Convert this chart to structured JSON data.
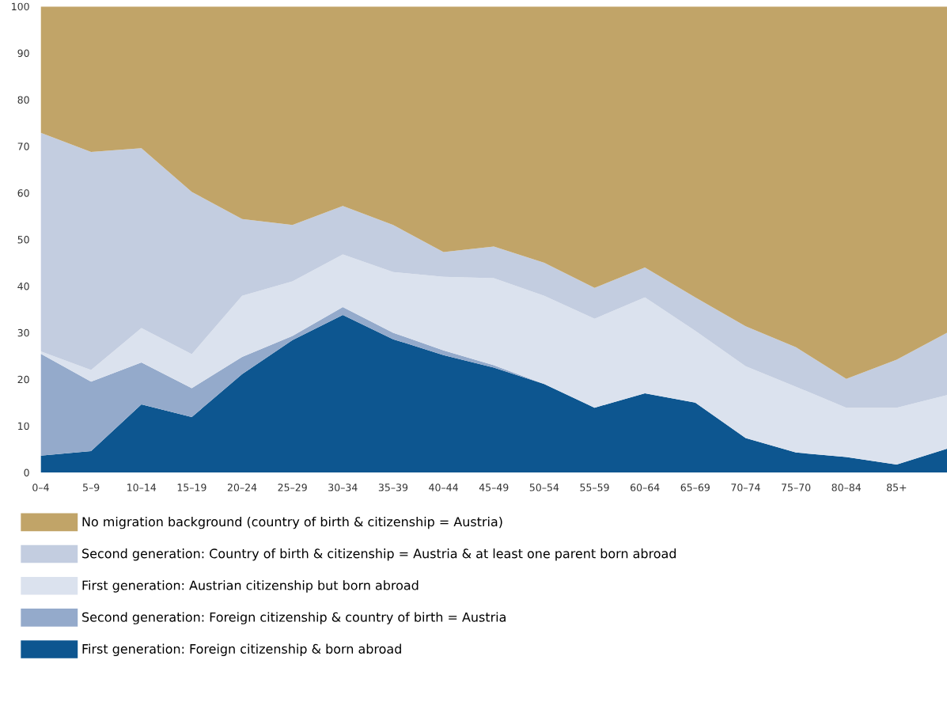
{
  "chart_data": {
    "type": "area",
    "stacked": true,
    "categories": [
      "0–4",
      "5–9",
      "10–14",
      "15–19",
      "20–24",
      "25–29",
      "30–34",
      "35–39",
      "40–44",
      "45–49",
      "50–54",
      "55–59",
      "60–64",
      "65–69",
      "70–74",
      "75–70",
      "80–84",
      "85+",
      null
    ],
    "ylim": [
      0,
      100
    ],
    "yticks": [
      0,
      10,
      20,
      30,
      40,
      50,
      60,
      70,
      80,
      90,
      100
    ],
    "grid": false,
    "legend": "bottom",
    "series": [
      {
        "name": "First generation: Foreign citizenship & born abroad",
        "color": "#0d5690",
        "values": [
          3.6,
          4.6,
          14.6,
          11.9,
          21.1,
          28.4,
          33.8,
          28.6,
          25.2,
          22.5,
          19,
          13.9,
          17,
          15,
          7.4,
          4.3,
          3.3,
          1.7,
          5.1
        ]
      },
      {
        "name": "Second generation: Foreign citizenship & country of birth = Austria",
        "color": "#94aacb",
        "values": [
          21.9,
          14.9,
          9,
          6.2,
          3.7,
          0.9,
          1.7,
          1.4,
          1,
          0.5,
          0,
          0,
          0,
          0,
          0,
          0,
          0,
          0,
          0
        ]
      },
      {
        "name": "First generation: Austrian citizenship but born abroad",
        "color": "#dbe2ee",
        "values": [
          0.5,
          2.5,
          7.4,
          7.3,
          13.1,
          11.7,
          11.3,
          13,
          15.8,
          18.7,
          18.9,
          19.1,
          20.6,
          15.4,
          15.4,
          14.1,
          10.6,
          12.2,
          11.5
        ]
      },
      {
        "name": "Second generation: Country of birth & citizenship = Austria & at least one parent born abroad",
        "color": "#c3cde0",
        "values": [
          46.9,
          46.8,
          38.6,
          34.8,
          16.5,
          12.1,
          10.4,
          10.1,
          5.3,
          6.8,
          7.1,
          6.6,
          6.4,
          7.2,
          8.6,
          8.5,
          6.2,
          10.3,
          13.4
        ]
      },
      {
        "name": "No migration background (country of birth & citizenship = Austria)",
        "color": "#c1a468",
        "values": [
          27.1,
          31.2,
          30.4,
          39.8,
          45.6,
          46.9,
          42.8,
          46.9,
          52.7,
          51.5,
          55,
          60.4,
          56,
          62.4,
          68.6,
          73.1,
          79.9,
          75.8,
          70
        ]
      }
    ]
  }
}
